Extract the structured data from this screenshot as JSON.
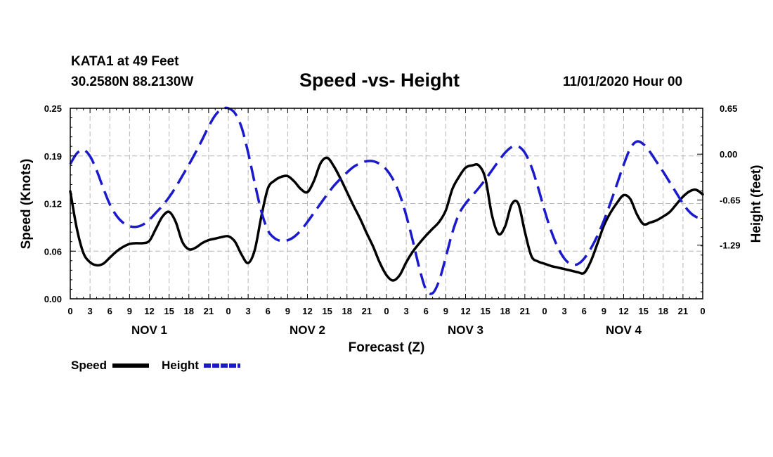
{
  "header": {
    "station": "KATA1 at 49 Feet",
    "coordinates": "30.2580N 88.2130W",
    "title": "Speed -vs- Height",
    "issued": "11/01/2020 Hour 00"
  },
  "colors": {
    "speed": "#000000",
    "height": "#1a1acc",
    "grid": "#b8b8b8"
  },
  "legend": {
    "speed_label": "Speed",
    "height_label": "Height"
  },
  "chart_data": {
    "type": "line",
    "title": "Speed -vs- Height",
    "xlabel": "Forecast (Z)",
    "ylabel_left": "Speed (Knots)",
    "ylabel_right": "Height (feet)",
    "x_unit": "forecast hour",
    "xlim": [
      0,
      96
    ],
    "ylim_left": [
      0,
      0.25
    ],
    "ylim_right": [
      -2.05,
      0.65
    ],
    "left_ticks": [
      0.0,
      0.0625,
      0.125,
      0.1875,
      0.25
    ],
    "left_tick_labels": [
      "0.00",
      "0.06",
      "0.12",
      "0.19",
      "0.25"
    ],
    "right_ticks": [
      0.65,
      0.0,
      -0.65,
      -1.29
    ],
    "right_tick_labels": [
      "0.65",
      "0.00",
      "-0.65",
      "-1.29"
    ],
    "x_ticks": [
      0,
      3,
      6,
      9,
      12,
      15,
      18,
      21,
      24,
      27,
      30,
      33,
      36,
      39,
      42,
      45,
      48,
      51,
      54,
      57,
      60,
      63,
      66,
      69,
      72,
      75,
      78,
      81,
      84,
      87,
      90,
      93,
      96
    ],
    "x_tick_labels": [
      "0",
      "3",
      "6",
      "9",
      "12",
      "15",
      "18",
      "21",
      "0",
      "3",
      "6",
      "9",
      "12",
      "15",
      "18",
      "21",
      "0",
      "3",
      "6",
      "9",
      "12",
      "15",
      "18",
      "21",
      "0",
      "3",
      "6",
      "9",
      "12",
      "15",
      "18",
      "21",
      "0"
    ],
    "day_labels": [
      {
        "label": "NOV 1",
        "x": 12
      },
      {
        "label": "NOV 2",
        "x": 36
      },
      {
        "label": "NOV 3",
        "x": 60
      },
      {
        "label": "NOV 4",
        "x": 84
      }
    ],
    "grid": true,
    "legend_position": "bottom-left",
    "series": [
      {
        "name": "Speed",
        "axis": "left",
        "style": "solid",
        "x": [
          0,
          1,
          2,
          3,
          4,
          5,
          6,
          7,
          8,
          9,
          10,
          11,
          12,
          13,
          14,
          15,
          16,
          17,
          18,
          19,
          20,
          21,
          22,
          23,
          24,
          25,
          26,
          27,
          28,
          29,
          30,
          31,
          32,
          33,
          34,
          35,
          36,
          37,
          38,
          39,
          40,
          41,
          42,
          43,
          44,
          45,
          46,
          47,
          48,
          49,
          50,
          51,
          52,
          53,
          54,
          55,
          56,
          57,
          58,
          59,
          60,
          61,
          62,
          63,
          64,
          65,
          66,
          67,
          68,
          69,
          70,
          71,
          72,
          73,
          74,
          75,
          76,
          77,
          78,
          79,
          80,
          81,
          82,
          83,
          84,
          85,
          86,
          87,
          88,
          89,
          90,
          91,
          92,
          93,
          94,
          95,
          96
        ],
        "values": [
          0.141,
          0.092,
          0.06,
          0.048,
          0.044,
          0.046,
          0.054,
          0.062,
          0.068,
          0.072,
          0.073,
          0.073,
          0.076,
          0.092,
          0.108,
          0.114,
          0.101,
          0.075,
          0.065,
          0.067,
          0.073,
          0.077,
          0.079,
          0.081,
          0.082,
          0.075,
          0.058,
          0.047,
          0.064,
          0.108,
          0.145,
          0.155,
          0.16,
          0.161,
          0.154,
          0.144,
          0.14,
          0.155,
          0.178,
          0.185,
          0.174,
          0.158,
          0.14,
          0.122,
          0.105,
          0.086,
          0.068,
          0.047,
          0.031,
          0.024,
          0.031,
          0.048,
          0.062,
          0.073,
          0.083,
          0.092,
          0.101,
          0.116,
          0.144,
          0.16,
          0.172,
          0.175,
          0.175,
          0.158,
          0.11,
          0.085,
          0.095,
          0.124,
          0.125,
          0.088,
          0.056,
          0.049,
          0.046,
          0.043,
          0.041,
          0.039,
          0.037,
          0.035,
          0.034,
          0.049,
          0.072,
          0.096,
          0.113,
          0.126,
          0.136,
          0.131,
          0.111,
          0.098,
          0.1,
          0.103,
          0.108,
          0.114,
          0.124,
          0.134,
          0.141,
          0.143,
          0.137
        ]
      },
      {
        "name": "Height",
        "axis": "right",
        "style": "dashed",
        "x": [
          0,
          1,
          2,
          3,
          4,
          5,
          6,
          7,
          8,
          9,
          10,
          11,
          12,
          13,
          14,
          15,
          16,
          17,
          18,
          19,
          20,
          21,
          22,
          23,
          24,
          25,
          26,
          27,
          28,
          29,
          30,
          31,
          32,
          33,
          34,
          35,
          36,
          37,
          38,
          39,
          40,
          41,
          42,
          43,
          44,
          45,
          46,
          47,
          48,
          49,
          50,
          51,
          52,
          53,
          54,
          55,
          56,
          57,
          58,
          59,
          60,
          61,
          62,
          63,
          64,
          65,
          66,
          67,
          68,
          69,
          70,
          71,
          72,
          73,
          74,
          75,
          76,
          77,
          78,
          79,
          80,
          81,
          82,
          83,
          84,
          85,
          86,
          87,
          88,
          89,
          90,
          91,
          92,
          93,
          94,
          95,
          96
        ],
        "values": [
          -0.14,
          0.01,
          0.06,
          -0.03,
          -0.23,
          -0.48,
          -0.71,
          -0.87,
          -0.97,
          -1.02,
          -1.03,
          -1.0,
          -0.93,
          -0.83,
          -0.73,
          -0.61,
          -0.47,
          -0.31,
          -0.15,
          0.02,
          0.2,
          0.39,
          0.55,
          0.64,
          0.65,
          0.58,
          0.38,
          0.02,
          -0.41,
          -0.81,
          -1.08,
          -1.19,
          -1.23,
          -1.22,
          -1.17,
          -1.08,
          -0.96,
          -0.83,
          -0.7,
          -0.57,
          -0.45,
          -0.35,
          -0.26,
          -0.18,
          -0.13,
          -0.1,
          -0.1,
          -0.14,
          -0.22,
          -0.36,
          -0.57,
          -0.87,
          -1.23,
          -1.62,
          -1.92,
          -1.97,
          -1.79,
          -1.46,
          -1.11,
          -0.85,
          -0.7,
          -0.59,
          -0.48,
          -0.36,
          -0.23,
          -0.1,
          0.02,
          0.1,
          0.11,
          0.02,
          -0.18,
          -0.47,
          -0.8,
          -1.09,
          -1.32,
          -1.48,
          -1.56,
          -1.56,
          -1.48,
          -1.34,
          -1.16,
          -0.94,
          -0.69,
          -0.42,
          -0.15,
          0.08,
          0.18,
          0.14,
          0.03,
          -0.11,
          -0.25,
          -0.4,
          -0.55,
          -0.7,
          -0.82,
          -0.89,
          -0.91
        ]
      }
    ]
  }
}
